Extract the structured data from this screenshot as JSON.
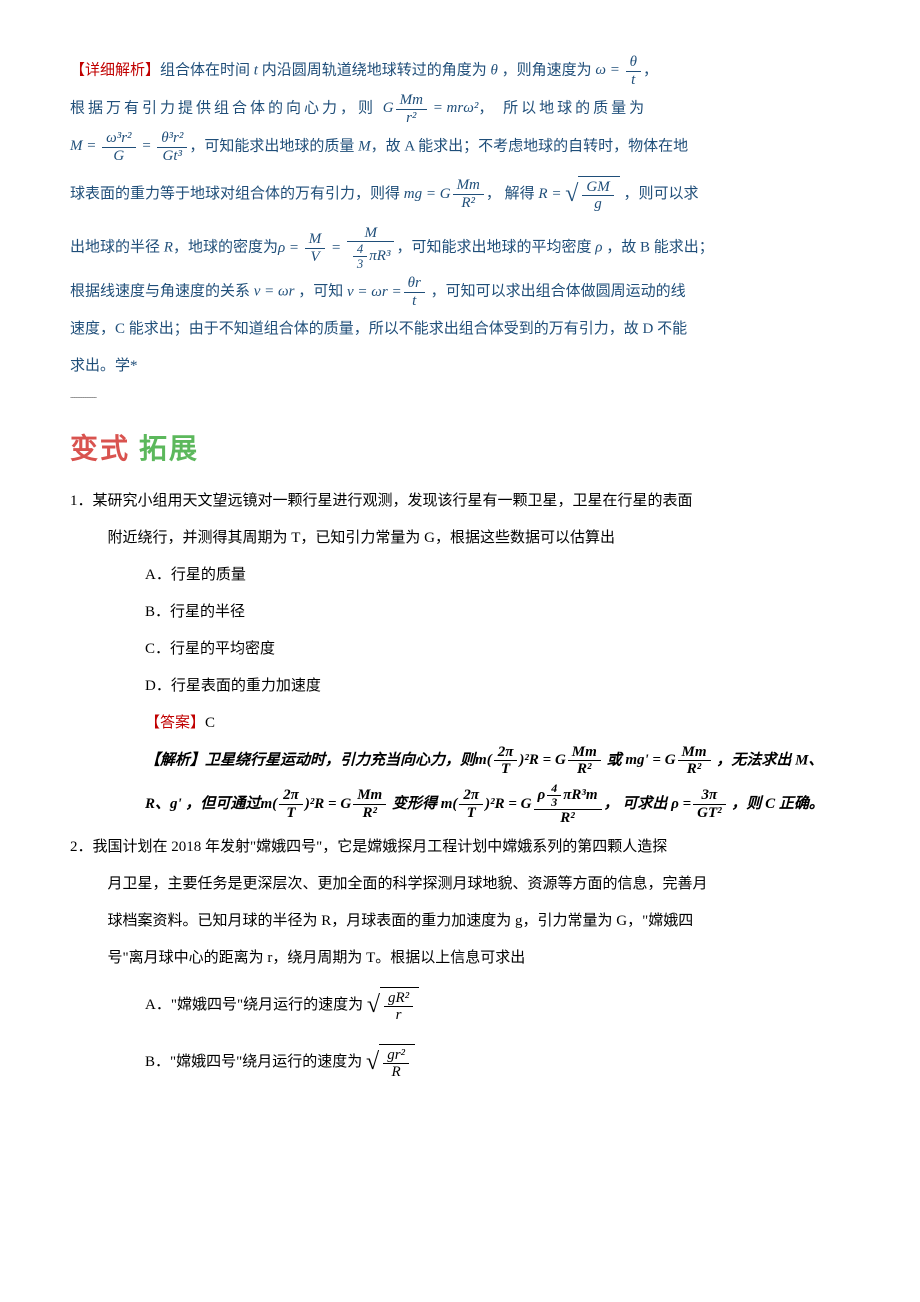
{
  "color_red": "#c00000",
  "color_blue": "#1f4e79",
  "color_black": "#000000",
  "font_body_size_pt": 11,
  "font_section_size_pt": 21,
  "line_height": 2.2,
  "detail": {
    "label": "【详细解析】",
    "line1_a": "组合体在时间 ",
    "var_t": "t",
    "line1_b": " 内沿圆周轨道绕地球转过的角度为 ",
    "var_theta": "θ",
    "line1_c": " ，则角速度为",
    "eq1_lhs": "ω =",
    "eq1_num": "θ",
    "eq1_den": "t",
    "line1_d": "，",
    "line2_a": "根据万有引力提供组合体的向心力，则 ",
    "eq2_lhs": "G",
    "eq2_num": "Mm",
    "eq2_den": "r²",
    "eq2_rhs": "= mrω²",
    "line2_b": "， 所以地球的质量为",
    "eq3_lhs": "M =",
    "eq3a_num": "ω³r²",
    "eq3a_den": "G",
    "eq3_eq": "=",
    "eq3b_num": "θ³r²",
    "eq3b_den": "Gt³",
    "line3_a": "，可知能求出地球的质量 ",
    "var_M": "M",
    "line3_b": "，故 A 能求出；不考虑地球的自转时，物体在地",
    "line4_a": "球表面的重力等于地球对组合体的万有引力，则得 ",
    "eq4_lhs": "mg = G",
    "eq4_num": "Mm",
    "eq4_den": "R²",
    "line4_b": "， 解得 ",
    "eq5_lhs": "R =",
    "eq5_num": "GM",
    "eq5_den": "g",
    "line4_c": " ，则可以求",
    "line5_a": "出地球的半径 ",
    "var_R": "R",
    "line5_b": "，地球的密度为",
    "eq6_lhs": "ρ =",
    "eq6a_num": "M",
    "eq6a_den": "V",
    "eq6_eq": "=",
    "eq6b_num": "M",
    "eq6b_den_num": "4",
    "eq6b_den_den": "3",
    "eq6b_den_rest": "πR³",
    "line5_c": "，可知能求出地球的平均密度 ",
    "var_rho": "ρ",
    "line5_d": " ，故 B 能求出；",
    "line6_a": "根据线速度与角速度的关系 ",
    "eq7": "v = ωr",
    "line6_b": " ，可知 ",
    "eq8_lhs": "v = ωr =",
    "eq8_num": "θr",
    "eq8_den": "t",
    "line6_c": " ，可知可以求出组合体做圆周运动的线",
    "line7_a": "速度，C 能求出；由于不知道组合体的质量，所以不能求出组合体受到的万有引力，故 D 不能",
    "line8_a": "求出。学*"
  },
  "section_title_a": "变式",
  "section_title_b": "拓展",
  "q1": {
    "num": "1．",
    "stem": "某研究小组用天文望远镜对一颗行星进行观测，发现该行星有一颗卫星，卫星在行星的表面",
    "stem2": "附近绕行，并测得其周期为 T，已知引力常量为 G，根据这些数据可以估算出",
    "optA": "A．行星的质量",
    "optB": "B．行星的半径",
    "optC": "C．行星的平均密度",
    "optD": "D．行星表面的重力加速度",
    "ans_label": "【答案】",
    "ans": "C",
    "exp_label": "【解析】",
    "exp_a": "卫星绕行星运动时，引力充当向心力，则",
    "exp_eq1_lhs": "m(",
    "exp_eq1_num": "2π",
    "exp_eq1_den": "T",
    "exp_eq1_b": ")²R = G",
    "exp_eq1_num2": "Mm",
    "exp_eq1_den2": "R²",
    "exp_or": "  或 ",
    "exp_eq2_lhs": "mg' = G",
    "exp_eq2_num": "Mm",
    "exp_eq2_den": "R²",
    "exp_b": " ，无法求出 M、",
    "exp_c": "R、g' ，但可通过",
    "exp_eq3_lhs": "m(",
    "exp_eq3_num": "2π",
    "exp_eq3_den": "T",
    "exp_eq3_b": ")²R = G",
    "exp_eq3_num2": "Mm",
    "exp_eq3_den2": "R²",
    "exp_d": " 变形得 ",
    "exp_eq4_lhs": "m(",
    "exp_eq4_num": "2π",
    "exp_eq4_den": "T",
    "exp_eq4_b": ")²R = G",
    "exp_eq4_topnum": "4",
    "exp_eq4_topden": "3",
    "exp_eq4_toprest": "πR³m",
    "exp_eq4_rho": "ρ",
    "exp_eq4_den2": "R²",
    "exp_e": "， 可求出 ",
    "exp_eq5_lhs": "ρ =",
    "exp_eq5_num": "3π",
    "exp_eq5_den": "GT²",
    "exp_f": " ，则 C 正确。"
  },
  "q2": {
    "num": "2．",
    "stem1": "我国计划在 2018 年发射\"嫦娥四号\"，它是嫦娥探月工程计划中嫦娥系列的第四颗人造探",
    "stem2": "月卫星，主要任务是更深层次、更加全面的科学探测月球地貌、资源等方面的信息，完善月",
    "stem3": "球档案资料。已知月球的半径为 R，月球表面的重力加速度为 g，引力常量为 G，\"嫦娥四",
    "stem4": "号\"离月球中心的距离为 r，绕月周期为 T。根据以上信息可求出",
    "optA_a": "A．\"嫦娥四号\"绕月运行的速度为",
    "optA_num": "gR²",
    "optA_den": "r",
    "optB_a": "B．\"嫦娥四号\"绕月运行的速度为",
    "optB_num": "gr²",
    "optB_den": "R"
  }
}
